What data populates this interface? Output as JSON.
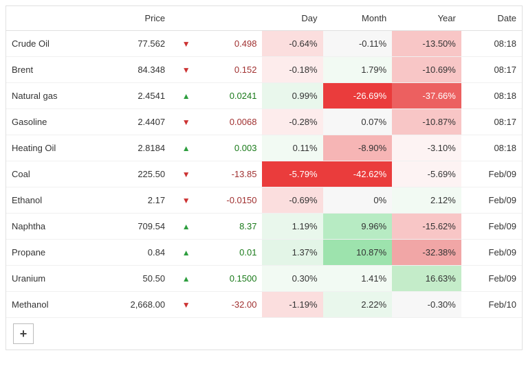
{
  "headers": {
    "name": "",
    "price": "Price",
    "dir": "",
    "change": "",
    "day": "Day",
    "month": "Month",
    "year": "Year",
    "date": "Date"
  },
  "add_button_label": "+",
  "colors": {
    "strong_red_bg": "#ea3c3c",
    "strong_red_fg": "#ffffff",
    "light_red_bg": "#fbdede",
    "very_light_red_bg": "#fdecec",
    "tint_red_bg": "#fdf3f3",
    "strong_green_bg": "#4fc56a",
    "light_green_bg": "#d3f1d9",
    "very_light_green_bg": "#e9f7ec",
    "tint_green_bg": "#f2faf3",
    "neutral_bg": "#f7f7f7",
    "text": "#333333"
  },
  "rows": [
    {
      "name": "Crude Oil",
      "price": "77.562",
      "dir": "down",
      "change": "0.498",
      "day": {
        "v": "-0.64%",
        "bg": "#fbdede",
        "fg": "#333333"
      },
      "month": {
        "v": "-0.11%",
        "bg": "#f7f7f7",
        "fg": "#333333"
      },
      "year": {
        "v": "-13.50%",
        "bg": "#f8c6c6",
        "fg": "#333333"
      },
      "date": "08:18"
    },
    {
      "name": "Brent",
      "price": "84.348",
      "dir": "down",
      "change": "0.152",
      "day": {
        "v": "-0.18%",
        "bg": "#fdecec",
        "fg": "#333333"
      },
      "month": {
        "v": "1.79%",
        "bg": "#f2faf3",
        "fg": "#333333"
      },
      "year": {
        "v": "-10.69%",
        "bg": "#f8c6c6",
        "fg": "#333333"
      },
      "date": "08:17"
    },
    {
      "name": "Natural gas",
      "price": "2.4541",
      "dir": "up",
      "change": "0.0241",
      "day": {
        "v": "0.99%",
        "bg": "#e9f7ec",
        "fg": "#333333"
      },
      "month": {
        "v": "-26.69%",
        "bg": "#ea3c3c",
        "fg": "#ffffff"
      },
      "year": {
        "v": "-37.66%",
        "bg": "#ec6060",
        "fg": "#ffffff"
      },
      "date": "08:18"
    },
    {
      "name": "Gasoline",
      "price": "2.4407",
      "dir": "down",
      "change": "0.0068",
      "day": {
        "v": "-0.28%",
        "bg": "#fdecec",
        "fg": "#333333"
      },
      "month": {
        "v": "0.07%",
        "bg": "#f7f7f7",
        "fg": "#333333"
      },
      "year": {
        "v": "-10.87%",
        "bg": "#f8c6c6",
        "fg": "#333333"
      },
      "date": "08:17"
    },
    {
      "name": "Heating Oil",
      "price": "2.8184",
      "dir": "up",
      "change": "0.003",
      "day": {
        "v": "0.11%",
        "bg": "#f2faf3",
        "fg": "#333333"
      },
      "month": {
        "v": "-8.90%",
        "bg": "#f6b5b5",
        "fg": "#333333"
      },
      "year": {
        "v": "-3.10%",
        "bg": "#fdf3f3",
        "fg": "#333333"
      },
      "date": "08:18"
    },
    {
      "name": "Coal",
      "price": "225.50",
      "dir": "down",
      "change": "-13.85",
      "day": {
        "v": "-5.79%",
        "bg": "#ea3c3c",
        "fg": "#ffffff"
      },
      "month": {
        "v": "-42.62%",
        "bg": "#ea3c3c",
        "fg": "#ffffff"
      },
      "year": {
        "v": "-5.69%",
        "bg": "#fdf3f3",
        "fg": "#333333"
      },
      "date": "Feb/09"
    },
    {
      "name": "Ethanol",
      "price": "2.17",
      "dir": "down",
      "change": "-0.0150",
      "day": {
        "v": "-0.69%",
        "bg": "#fbdede",
        "fg": "#333333"
      },
      "month": {
        "v": "0%",
        "bg": "#f7f7f7",
        "fg": "#333333"
      },
      "year": {
        "v": "2.12%",
        "bg": "#f2faf3",
        "fg": "#333333"
      },
      "date": "Feb/09"
    },
    {
      "name": "Naphtha",
      "price": "709.54",
      "dir": "up",
      "change": "8.37",
      "day": {
        "v": "1.19%",
        "bg": "#e9f7ec",
        "fg": "#333333"
      },
      "month": {
        "v": "9.96%",
        "bg": "#b7ebc3",
        "fg": "#333333"
      },
      "year": {
        "v": "-15.62%",
        "bg": "#f8c6c6",
        "fg": "#333333"
      },
      "date": "Feb/09"
    },
    {
      "name": "Propane",
      "price": "0.84",
      "dir": "up",
      "change": "0.01",
      "day": {
        "v": "1.37%",
        "bg": "#e3f5e7",
        "fg": "#333333"
      },
      "month": {
        "v": "10.87%",
        "bg": "#9de3ad",
        "fg": "#333333"
      },
      "year": {
        "v": "-32.38%",
        "bg": "#f1a6a6",
        "fg": "#333333"
      },
      "date": "Feb/09"
    },
    {
      "name": "Uranium",
      "price": "50.50",
      "dir": "up",
      "change": "0.1500",
      "day": {
        "v": "0.30%",
        "bg": "#f2faf3",
        "fg": "#333333"
      },
      "month": {
        "v": "1.41%",
        "bg": "#f2faf3",
        "fg": "#333333"
      },
      "year": {
        "v": "16.63%",
        "bg": "#c4ecc9",
        "fg": "#333333"
      },
      "date": "Feb/09"
    },
    {
      "name": "Methanol",
      "price": "2,668.00",
      "dir": "down",
      "change": "-32.00",
      "day": {
        "v": "-1.19%",
        "bg": "#fbdede",
        "fg": "#333333"
      },
      "month": {
        "v": "2.22%",
        "bg": "#e9f7ec",
        "fg": "#333333"
      },
      "year": {
        "v": "-0.30%",
        "bg": "#f7f7f7",
        "fg": "#333333"
      },
      "date": "Feb/10"
    }
  ]
}
